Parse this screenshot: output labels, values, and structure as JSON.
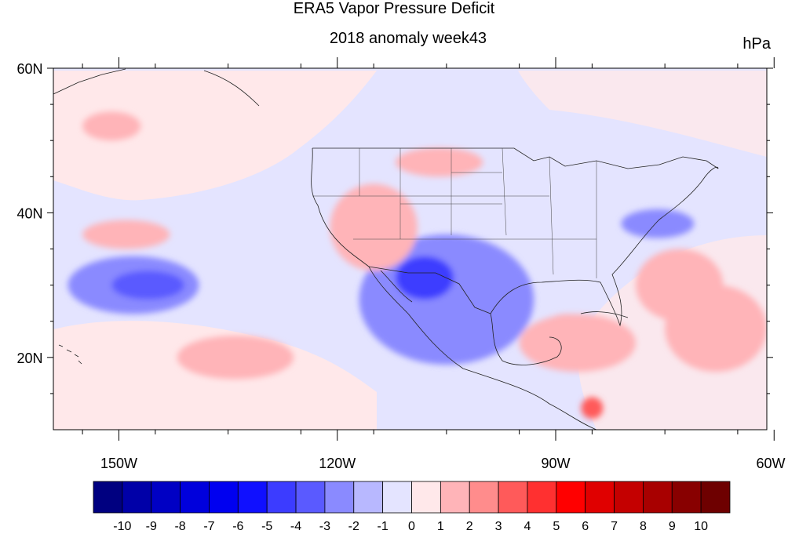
{
  "title": "ERA5 Vapor Pressure Deficit",
  "subtitle": "2018 anomaly week43",
  "units": "hPa",
  "axes": {
    "lat_labels": [
      {
        "value": 60,
        "label": "60N"
      },
      {
        "value": 40,
        "label": "40N"
      },
      {
        "value": 20,
        "label": "20N"
      }
    ],
    "lon_labels": [
      {
        "value": -150,
        "label": "150W"
      },
      {
        "value": -120,
        "label": "120W"
      },
      {
        "value": -90,
        "label": "90W"
      },
      {
        "value": -60,
        "label": "60W"
      }
    ],
    "lon_range": [
      -159,
      -61
    ],
    "lat_range": [
      10,
      60
    ]
  },
  "colorbar": {
    "labels": [
      "-10",
      "-9",
      "-8",
      "-7",
      "-6",
      "-5",
      "-4",
      "-3",
      "-2",
      "-1",
      "0",
      "1",
      "2",
      "3",
      "4",
      "5",
      "6",
      "7",
      "8",
      "9",
      "10"
    ],
    "colors": [
      "#000080",
      "#0000a8",
      "#0000c4",
      "#0000dc",
      "#0000f0",
      "#1010ff",
      "#3c3cff",
      "#5a5aff",
      "#8a8aff",
      "#b8b8ff",
      "#e4e4ff",
      "#ffe8ea",
      "#ffb4b8",
      "#ff8c8c",
      "#ff5a5a",
      "#ff3030",
      "#ff0000",
      "#e00000",
      "#c40000",
      "#a80000",
      "#880000",
      "#6e0000"
    ]
  },
  "anomalies": [
    {
      "kind": "neg",
      "level": -9,
      "lon": -103.5,
      "lat": 26.5,
      "rlon": 4,
      "rlat": 3
    },
    {
      "kind": "neg",
      "level": -6,
      "lon": -103,
      "lat": 27,
      "rlon": 6.5,
      "rlat": 4.5
    },
    {
      "kind": "neg",
      "level": -4,
      "lon": -104,
      "lat": 28,
      "rlon": 9,
      "rlat": 7
    },
    {
      "kind": "neg",
      "level": -2,
      "lon": -105,
      "lat": 28,
      "rlon": 12,
      "rlat": 9
    },
    {
      "kind": "neg",
      "level": -4,
      "lon": -108,
      "lat": 31,
      "rlon": 4,
      "rlat": 3
    },
    {
      "kind": "neg",
      "level": -2,
      "lon": -148,
      "lat": 30,
      "rlon": 9,
      "rlat": 4
    },
    {
      "kind": "neg",
      "level": -3,
      "lon": -146,
      "lat": 30,
      "rlon": 5,
      "rlat": 2
    },
    {
      "kind": "neg",
      "level": -2,
      "lon": -76,
      "lat": 38.5,
      "rlon": 5,
      "rlat": 2
    },
    {
      "kind": "pos",
      "level": 4,
      "lon": -115.5,
      "lat": 36,
      "rlon": 3,
      "rlat": 3
    },
    {
      "kind": "pos",
      "level": 2,
      "lon": -115,
      "lat": 38,
      "rlon": 6,
      "rlat": 6
    },
    {
      "kind": "pos",
      "level": 2,
      "lon": -106,
      "lat": 47,
      "rlon": 6,
      "rlat": 2
    },
    {
      "kind": "pos",
      "level": 3,
      "lon": -88,
      "lat": 23,
      "rlon": 5,
      "rlat": 3
    },
    {
      "kind": "pos",
      "level": 2,
      "lon": -87,
      "lat": 22,
      "rlon": 8,
      "rlat": 4
    },
    {
      "kind": "pos",
      "level": 2,
      "lon": -134,
      "lat": 20,
      "rlon": 8,
      "rlat": 3
    },
    {
      "kind": "pos",
      "level": 2,
      "lon": -149,
      "lat": 37,
      "rlon": 6,
      "rlat": 2
    },
    {
      "kind": "pos",
      "level": 3,
      "lon": -67,
      "lat": 22,
      "rlon": 3,
      "rlat": 3
    },
    {
      "kind": "pos",
      "level": 2,
      "lon": -68,
      "lat": 24,
      "rlon": 7,
      "rlat": 6
    },
    {
      "kind": "pos",
      "level": 2,
      "lon": -73,
      "lat": 30,
      "rlon": 6,
      "rlat": 5
    },
    {
      "kind": "pos",
      "level": 4,
      "lon": -85,
      "lat": 13,
      "rlon": 1.5,
      "rlat": 1.5
    },
    {
      "kind": "pos",
      "level": 2,
      "lon": -151,
      "lat": 52,
      "rlon": 4,
      "rlat": 2
    }
  ]
}
